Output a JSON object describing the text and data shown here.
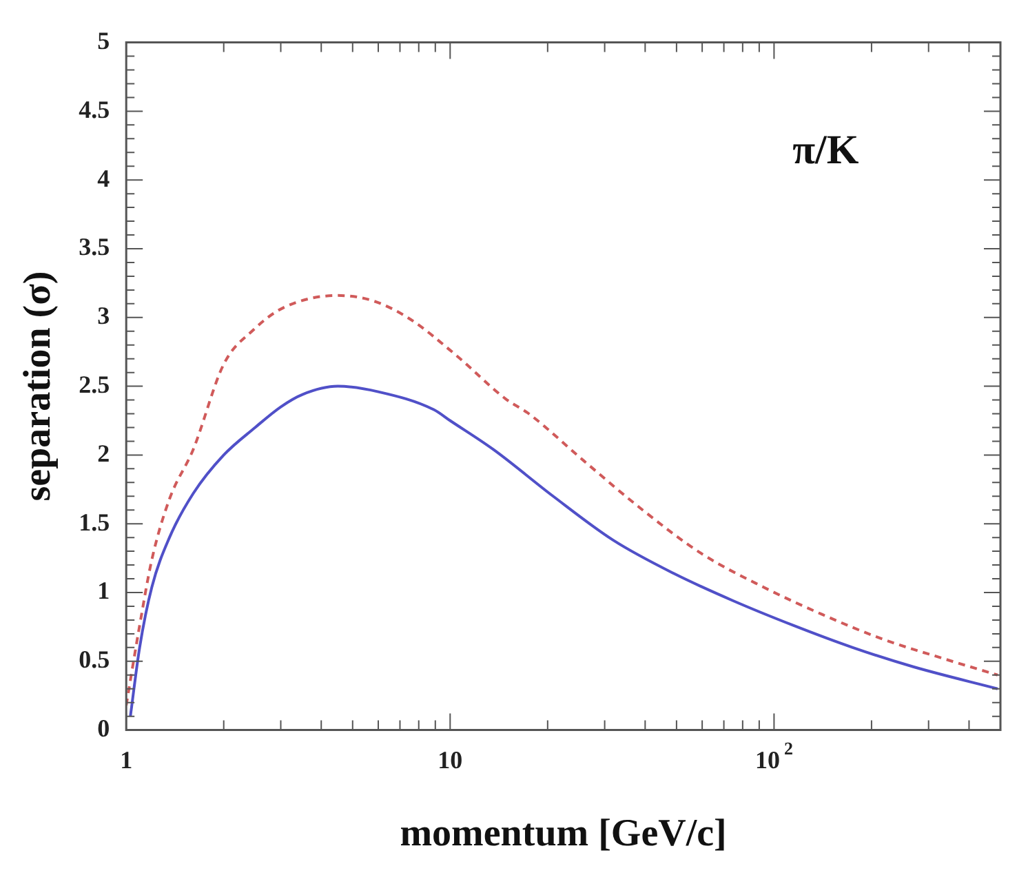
{
  "chart_data": {
    "type": "line",
    "xlabel": "momentum [GeV/c]",
    "ylabel": "separation (σ)",
    "annotations": [
      "π/K"
    ],
    "log": "x",
    "grid": false,
    "legend": false,
    "marker": "none",
    "xlim": [
      1,
      500
    ],
    "ylim": [
      0,
      5
    ],
    "xticks": [
      1,
      {
        "value": 2,
        "label": null
      },
      {
        "value": 3,
        "label": null
      },
      {
        "value": 4,
        "label": null
      },
      {
        "value": 5,
        "label": null
      },
      {
        "value": 6,
        "label": null
      },
      {
        "value": 7,
        "label": null
      },
      {
        "value": 8,
        "label": null
      },
      {
        "value": 9,
        "label": null
      },
      10,
      {
        "value": 20,
        "label": null
      },
      {
        "value": 30,
        "label": null
      },
      {
        "value": 40,
        "label": null
      },
      {
        "value": 50,
        "label": null
      },
      {
        "value": 60,
        "label": null
      },
      {
        "value": 70,
        "label": null
      },
      {
        "value": 80,
        "label": null
      },
      {
        "value": 90,
        "label": null
      },
      {
        "value": 100,
        "label": "10$^{2}$"
      },
      {
        "value": 200,
        "label": null
      },
      {
        "value": 300,
        "label": null
      },
      {
        "value": 400,
        "label": null
      }
    ],
    "yticks": [
      0,
      0.5,
      1,
      1.5,
      2,
      2.5,
      3,
      3.5,
      4,
      4.5,
      5
    ],
    "series": [
      {
        "color": "#5050c8",
        "line_style": "solid",
        "x": [
          1.03,
          1.1,
          1.2,
          1.36,
          1.61,
          2,
          2.5,
          3,
          3.5,
          4.5,
          6,
          8.9,
          10,
          13.6,
          20.8,
          31.9,
          48.9,
          74.8,
          115,
          175,
          269,
          490
        ],
        "values": [
          0.1,
          0.6,
          1.04,
          1.4,
          1.72,
          2.0,
          2.2,
          2.35,
          2.44,
          2.5,
          2.46,
          2.33,
          2.25,
          2.04,
          1.7,
          1.38,
          1.14,
          0.94,
          0.76,
          0.6,
          0.46,
          0.3
        ]
      },
      {
        "color": "#d05a5a",
        "line_style": "dashed",
        "x": [
          1.0,
          1.1,
          1.2,
          1.36,
          1.61,
          2,
          2.47,
          3.05,
          4.5,
          5.8,
          7.5,
          10.5,
          14.8,
          17.5,
          25.8,
          39.3,
          60,
          92.6,
          141,
          217,
          333,
          490
        ],
        "values": [
          0.18,
          0.76,
          1.24,
          1.68,
          2.04,
          2.66,
          2.91,
          3.07,
          3.16,
          3.12,
          2.99,
          2.72,
          2.41,
          2.3,
          1.96,
          1.6,
          1.28,
          1.04,
          0.84,
          0.66,
          0.52,
          0.4
        ]
      }
    ]
  }
}
